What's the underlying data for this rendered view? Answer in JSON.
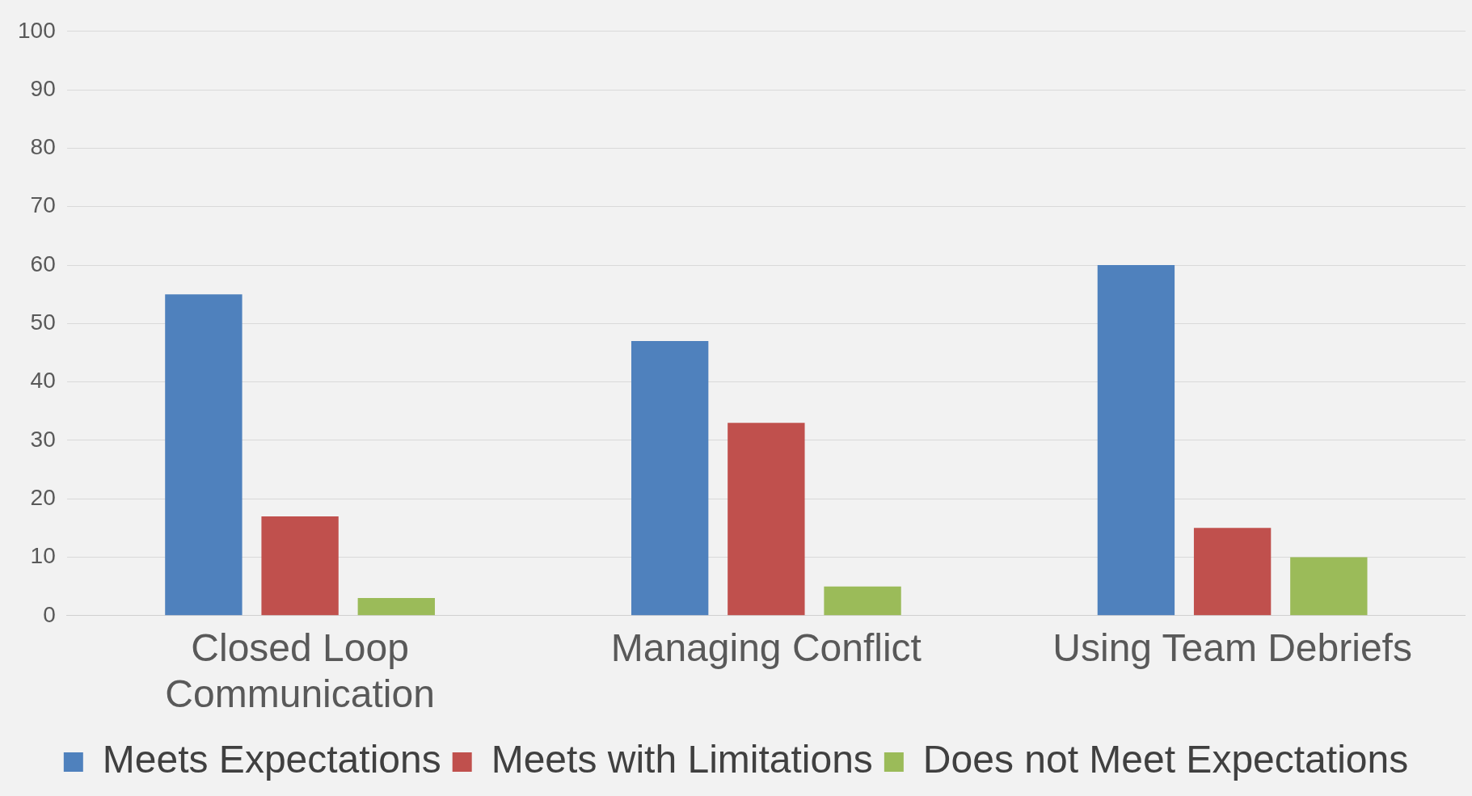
{
  "chart_data": {
    "type": "bar",
    "categories": [
      "Closed Loop Communication",
      "Managing Conflict",
      "Using Team Debriefs"
    ],
    "series": [
      {
        "name": "Meets Expectations",
        "color": "#4f81bd",
        "values": [
          55,
          47,
          60
        ]
      },
      {
        "name": "Meets with Limitations",
        "color": "#c0504d",
        "values": [
          17,
          33,
          15
        ]
      },
      {
        "name": "Does not Meet Expectations",
        "color": "#9bbb59",
        "values": [
          3,
          5,
          10
        ]
      }
    ],
    "ylim": [
      0,
      100
    ],
    "yticks": [
      0,
      10,
      20,
      30,
      40,
      50,
      60,
      70,
      80,
      90,
      100
    ],
    "grid": "y",
    "legend": "bottom"
  }
}
